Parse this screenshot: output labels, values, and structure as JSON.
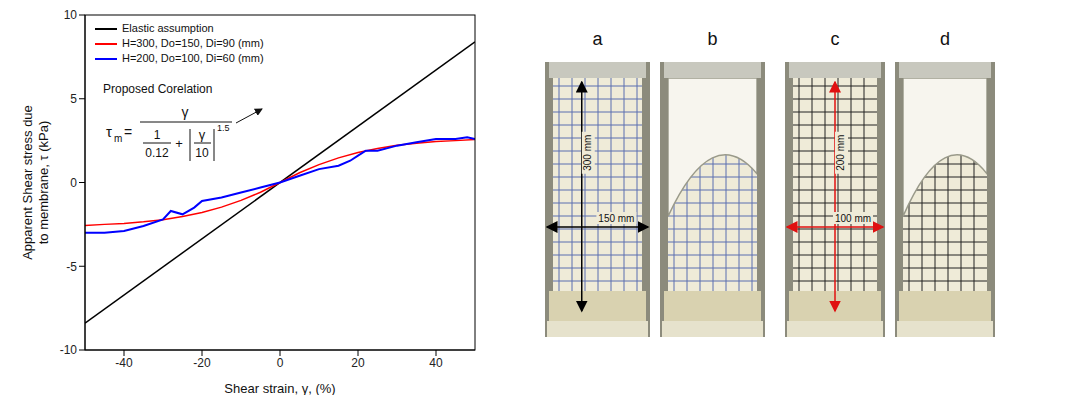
{
  "chart_data": {
    "type": "line",
    "x_label": "Shear strain, γ, (%)",
    "y_label": [
      "Apparent Shear stress due",
      "to membrane, τ (kPa)"
    ],
    "xlim": [
      -50,
      50
    ],
    "xticks": [
      -40,
      -20,
      0,
      20,
      40
    ],
    "ylim": [
      -10,
      10
    ],
    "yticks": [
      -10,
      -5,
      0,
      5,
      10
    ],
    "grid": false,
    "legend": "top-left",
    "series": [
      {
        "name": "Elastic assumption",
        "color": "#000000",
        "x": [
          -50,
          50
        ],
        "values": [
          -8.4,
          8.4
        ]
      },
      {
        "name": "H=300, Do=150, Di=90 (mm)",
        "color": "#ff0000",
        "x": [
          -50,
          -45,
          -40,
          -35,
          -30,
          -25,
          -20,
          -15,
          -10,
          -5,
          0,
          5,
          10,
          15,
          20,
          25,
          30,
          35,
          40,
          45,
          50
        ],
        "values": [
          -2.56,
          -2.5,
          -2.45,
          -2.35,
          -2.22,
          -2.03,
          -1.79,
          -1.47,
          -1.07,
          -0.58,
          0,
          0.58,
          1.07,
          1.47,
          1.79,
          2.03,
          2.22,
          2.35,
          2.45,
          2.5,
          2.56
        ]
      },
      {
        "name": "H=200, Do=100, Di=60 (mm)",
        "color": "#0000ff",
        "x": [
          -50,
          -45,
          -40,
          -35,
          -30,
          -28,
          -25,
          -22,
          -20,
          -15,
          -10,
          -5,
          0,
          5,
          10,
          15,
          18,
          20,
          22,
          25,
          30,
          35,
          40,
          45,
          48,
          50
        ],
        "values": [
          -3.0,
          -3.0,
          -2.9,
          -2.6,
          -2.2,
          -1.7,
          -1.9,
          -1.5,
          -1.1,
          -0.9,
          -0.6,
          -0.3,
          0,
          0.4,
          0.8,
          1.0,
          1.3,
          1.6,
          1.9,
          1.9,
          2.2,
          2.4,
          2.6,
          2.6,
          2.7,
          2.6
        ]
      }
    ],
    "annotation": {
      "text": "Proposed Corelation",
      "formula": {
        "lhs": "τ",
        "lhs_sub": "m",
        "equals": "=",
        "numerator": "γ",
        "inner_num": "1",
        "inner_den": "0.12",
        "plus": "+",
        "abs_num": "γ",
        "abs_den": "10",
        "exponent": "1.5"
      }
    }
  },
  "photos": [
    {
      "label": "a",
      "color": "#000000",
      "dimensions": [
        {
          "text": "300 mm",
          "orientation": "vertical"
        },
        {
          "text": "150 mm",
          "orientation": "horizontal"
        }
      ]
    },
    {
      "label": "b",
      "dimensions": []
    },
    {
      "label": "c",
      "color": "#e01010",
      "dimensions": [
        {
          "text": "200 mm",
          "orientation": "vertical"
        },
        {
          "text": "100 mm",
          "orientation": "horizontal"
        }
      ]
    },
    {
      "label": "d",
      "dimensions": []
    }
  ]
}
